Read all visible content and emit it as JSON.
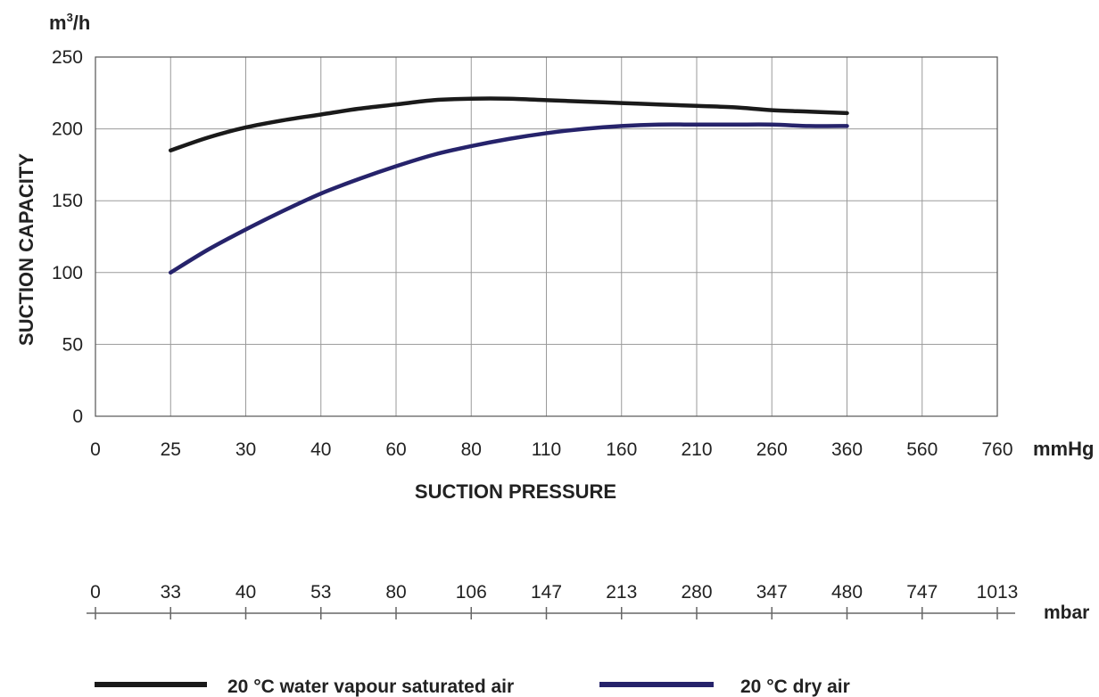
{
  "chart_data": {
    "type": "line",
    "y_unit": "m",
    "y_unit_exp": "3",
    "y_unit_rest": "/h",
    "ylabel": "SUCTION CAPACITY",
    "xlabel": "SUCTION PRESSURE",
    "x_unit": "mmHg",
    "ylim": [
      0,
      250
    ],
    "yticks": [
      "0",
      "50",
      "100",
      "150",
      "200",
      "250"
    ],
    "categories": [
      "0",
      "25",
      "30",
      "40",
      "60",
      "80",
      "110",
      "160",
      "210",
      "260",
      "360",
      "560",
      "760"
    ],
    "secondary_axis": {
      "unit": "mbar",
      "ticks": [
        "0",
        "33",
        "40",
        "53",
        "80",
        "106",
        "147",
        "213",
        "280",
        "347",
        "480",
        "747",
        "1013"
      ]
    },
    "grid": true,
    "legend_position": "bottom",
    "series": [
      {
        "name": "20 °C water vapour saturated air",
        "color": "#1a1a1a",
        "x": [
          1,
          1.5,
          2,
          2.5,
          3,
          3.5,
          4,
          4.5,
          5,
          5.5,
          6,
          6.5,
          7,
          7.5,
          8,
          8.5,
          9,
          9.5,
          10
        ],
        "values": [
          185,
          194,
          201,
          206,
          210,
          214,
          217,
          220,
          221,
          221,
          220,
          219,
          218,
          217,
          216,
          215,
          213,
          212,
          211
        ]
      },
      {
        "name": "20 °C dry air",
        "color": "#26236b",
        "x": [
          1,
          1.5,
          2,
          2.5,
          3,
          3.5,
          4,
          4.5,
          5,
          5.5,
          6,
          6.5,
          7,
          7.5,
          8,
          8.5,
          9,
          9.5,
          10
        ],
        "values": [
          100,
          116,
          130,
          143,
          155,
          165,
          174,
          182,
          188,
          193,
          197,
          200,
          202,
          203,
          203,
          203,
          203,
          202,
          202
        ]
      }
    ]
  }
}
